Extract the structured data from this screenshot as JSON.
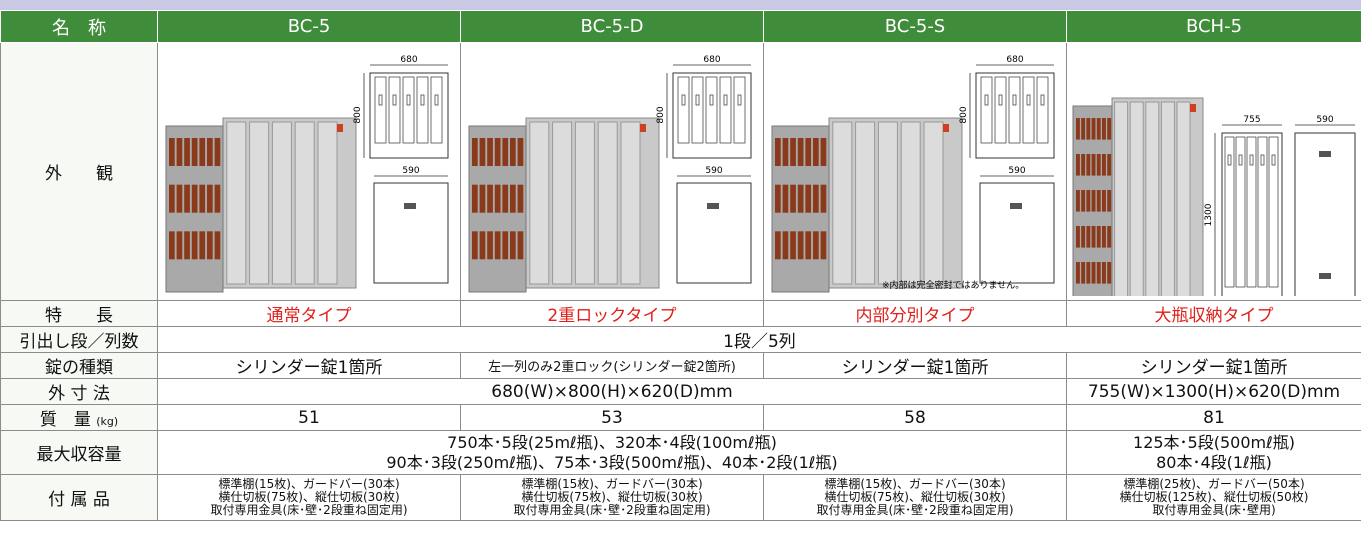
{
  "header": {
    "label": "名　称",
    "products": [
      "BC-5",
      "BC-5-D",
      "BC-5-S",
      "BCH-5"
    ]
  },
  "appearance": {
    "label": "外　　観",
    "diagrams": [
      {
        "width": "680",
        "height": "800",
        "depth": "590"
      },
      {
        "width": "680",
        "height": "800",
        "depth": "590"
      },
      {
        "width": "680",
        "height": "800",
        "depth": "590"
      },
      {
        "width": "755",
        "height": "1300",
        "depth": "590"
      }
    ],
    "note": "※内部は完全密封ではありません。"
  },
  "rows": {
    "feature": {
      "label": "特　　長",
      "cells": [
        "通常タイプ",
        "2重ロックタイプ",
        "内部分別タイプ",
        "大瓶収納タイプ"
      ]
    },
    "drawers": {
      "label": "引出し段／列数",
      "cells": [
        "1段／5列"
      ]
    },
    "lock": {
      "label": "錠の種類",
      "cells": [
        "シリンダー錠1箇所",
        "左一列のみ2重ロック(シリンダー錠2箇所)",
        "シリンダー錠1箇所",
        "シリンダー錠1箇所"
      ]
    },
    "dimensions": {
      "label": "外 寸 法",
      "cells": [
        "680(W)×800(H)×620(D)mm",
        "755(W)×1300(H)×620(D)mm"
      ]
    },
    "mass": {
      "label": "質　量",
      "unit": "(kg)",
      "cells": [
        51,
        53,
        58,
        81
      ]
    },
    "capacity": {
      "label": "最大収容量",
      "cells": [
        [
          "750本･5段(25mℓ瓶)、320本･4段(100mℓ瓶)",
          "90本･3段(250mℓ瓶)、75本･3段(500mℓ瓶)、40本･2段(1ℓ瓶)"
        ],
        [
          "125本･5段(500mℓ瓶)",
          "80本･4段(1ℓ瓶)"
        ]
      ]
    },
    "accessories": {
      "label": "付 属 品",
      "cells": [
        [
          "標準棚(15枚)、ガードバー(30本)",
          "横仕切板(75枚)、縦仕切板(30枚)",
          "取付専用金具(床･壁･2段重ね固定用)"
        ],
        [
          "標準棚(15枚)、ガードバー(30本)",
          "横仕切板(75枚)、縦仕切板(30枚)",
          "取付専用金具(床･壁･2段重ね固定用)"
        ],
        [
          "標準棚(15枚)、ガードバー(30本)",
          "横仕切板(75枚)、縦仕切板(30枚)",
          "取付専用金具(床･壁･2段重ね固定用)"
        ],
        [
          "標準棚(25枚)、ガードバー(50本)",
          "横仕切板(125枚)、縦仕切板(50枚)",
          "取付専用金具(床･壁用)"
        ]
      ]
    }
  }
}
